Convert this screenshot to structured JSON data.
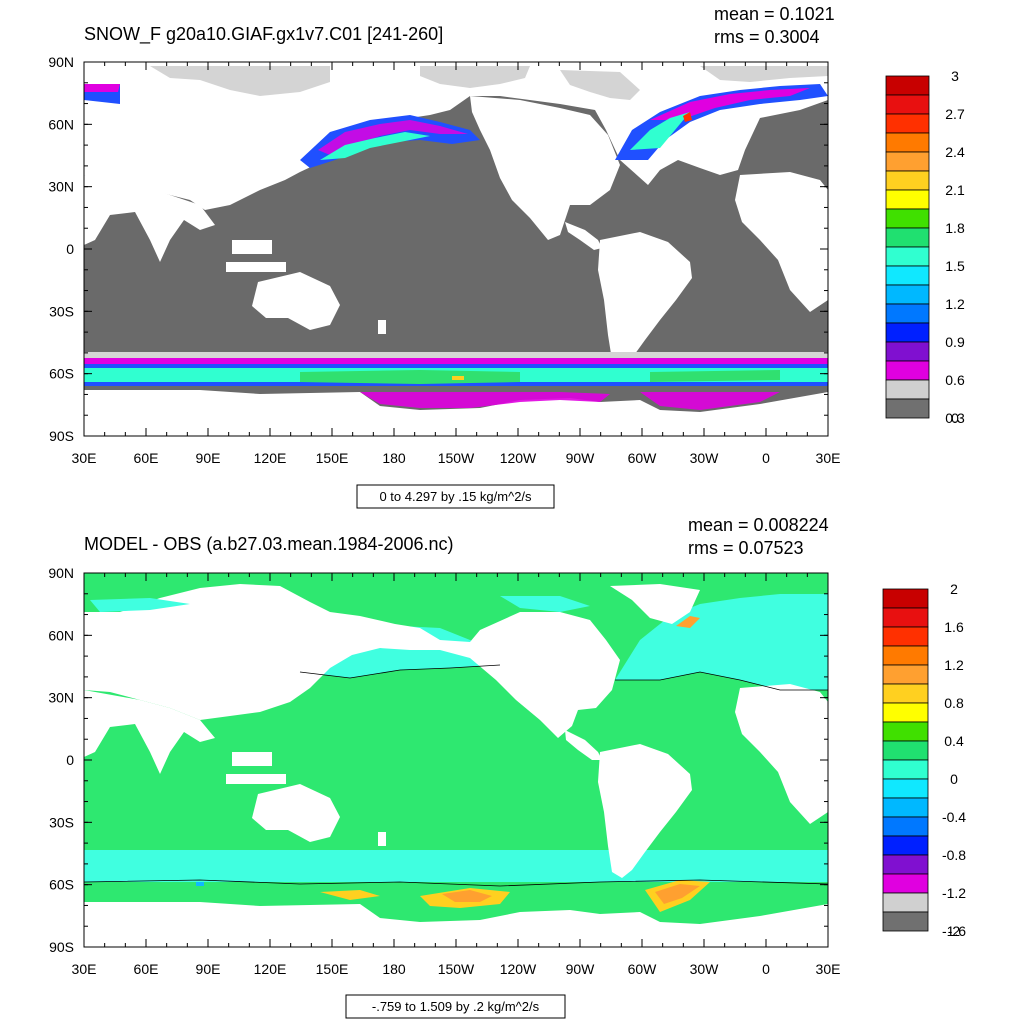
{
  "panels": [
    {
      "id": "top",
      "title": "SNOW_F g20a10.GIAF.gx1v7.C01 [241-260]",
      "mean_text": "mean = 0.1021",
      "rms_text": "rms = 0.3004",
      "range_text": "0 to 4.297 by .15 kg/m^2/s",
      "lat_labels": [
        "90N",
        "60N",
        "30N",
        "0",
        "30S",
        "60S",
        "90S"
      ],
      "lon_labels": [
        "30E",
        "60E",
        "90E",
        "120E",
        "150E",
        "180",
        "150W",
        "120W",
        "90W",
        "60W",
        "30W",
        "0",
        "30E"
      ],
      "colorbar_labels": [
        "3",
        "2.7",
        "2.4",
        "2.1",
        "1.8",
        "1.5",
        "1.2",
        "0.9",
        "0.6",
        "0.3",
        "0"
      ],
      "colorbar_colors": [
        "#c80000",
        "#e81010",
        "#ff3000",
        "#ff7a00",
        "#ffa030",
        "#ffd020",
        "#ffff00",
        "#40e000",
        "#20e070",
        "#30ffd0",
        "#10e8ff",
        "#00b8ff",
        "#0078ff",
        "#0020ff",
        "#8010d0",
        "#e000e0",
        "#d0d0d0",
        "#707070"
      ]
    },
    {
      "id": "bottom",
      "title": "MODEL - OBS (a.b27.03.mean.1984-2006.nc)",
      "mean_text": "mean = 0.008224",
      "rms_text": "rms = 0.07523",
      "range_text": "-.759 to 1.509 by .2 kg/m^2/s",
      "lat_labels": [
        "90N",
        "60N",
        "30N",
        "0",
        "30S",
        "60S",
        "90S"
      ],
      "lon_labels": [
        "30E",
        "60E",
        "90E",
        "120E",
        "150E",
        "180",
        "150W",
        "120W",
        "90W",
        "60W",
        "30W",
        "0",
        "30E"
      ],
      "colorbar_labels": [
        "2",
        "1.6",
        "1.2",
        "0.8",
        "0.4",
        "0",
        "-0.4",
        "-0.8",
        "-1.2",
        "-1.6",
        "-2"
      ],
      "colorbar_colors": [
        "#c80000",
        "#e81010",
        "#ff3000",
        "#ff7a00",
        "#ffa030",
        "#ffd020",
        "#ffff00",
        "#40e000",
        "#20e070",
        "#30ffd0",
        "#10e8ff",
        "#00b8ff",
        "#0078ff",
        "#0020ff",
        "#8010d0",
        "#e000e0",
        "#d0d0d0",
        "#707070"
      ]
    }
  ],
  "colors": {
    "land": "#ffffff",
    "ocean_top": "#6a6a6a",
    "ocean_bottom": "#2ee870",
    "shelf_bottom": "#40ffe0",
    "snow_grey": "#d4d4d4",
    "snow_magenta": "#e000e0",
    "snow_blue": "#2050ff",
    "snow_cyan": "#30ffd0",
    "snow_green": "#30e070",
    "warm_yellow": "#ffd020",
    "warm_orange": "#ff9030"
  }
}
